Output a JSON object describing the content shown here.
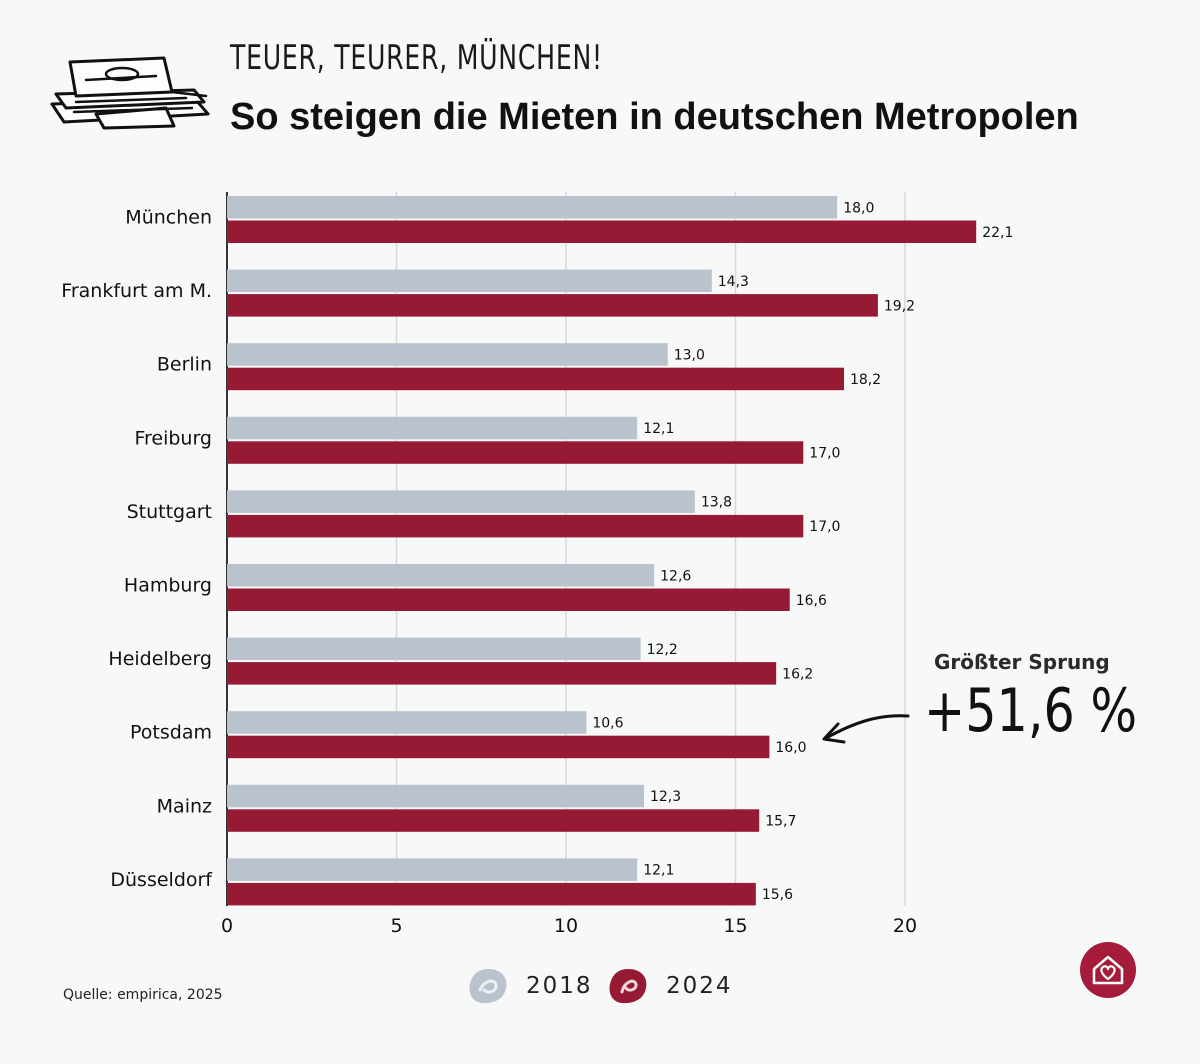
{
  "header": {
    "kicker": "TEUER, TEURER, MÜNCHEN!",
    "title": "So steigen die Mieten in deutschen Metropolen"
  },
  "colors": {
    "series_2018": "#b9c2cd",
    "series_2024": "#961a34",
    "gridline": "#d5d9dd",
    "axis": "#333333"
  },
  "chart_data": {
    "type": "bar",
    "orientation": "horizontal",
    "title": "So steigen die Mieten in deutschen Metropolen",
    "categories": [
      "München",
      "Frankfurt am M.",
      "Berlin",
      "Freiburg",
      "Stuttgart",
      "Hamburg",
      "Heidelberg",
      "Potsdam",
      "Mainz",
      "Düsseldorf"
    ],
    "series": [
      {
        "name": "2018",
        "values": [
          18.0,
          14.3,
          13.0,
          12.1,
          13.8,
          12.6,
          12.2,
          10.6,
          12.3,
          12.1
        ],
        "labels": [
          "18,0",
          "14,3",
          "13,0",
          "12,1",
          "13,8",
          "12,6",
          "12,2",
          "10,6",
          "12,3",
          "12,1"
        ]
      },
      {
        "name": "2024",
        "values": [
          22.1,
          19.2,
          18.2,
          17.0,
          17.0,
          16.6,
          16.2,
          16.0,
          15.7,
          15.6
        ],
        "labels": [
          "22,1",
          "19,2",
          "18,2",
          "17,0",
          "17,0",
          "16,6",
          "16,2",
          "16,0",
          "15,7",
          "15,6"
        ]
      }
    ],
    "xlim": [
      0,
      22.1
    ],
    "xticks": [
      0,
      5,
      10,
      15,
      20
    ],
    "xlabel": "",
    "ylabel": "",
    "grid": true,
    "legend": "bottom-center",
    "annotation": {
      "title": "Größter Sprung",
      "value": "+51,6 %",
      "target_category": "Potsdam"
    }
  },
  "legend": {
    "items": [
      "2018",
      "2024"
    ]
  },
  "footer": {
    "source": "Quelle: empirica, 2025"
  },
  "icons": {
    "illustration": "money-stack-illustration",
    "logo": "house-heart-logo"
  }
}
